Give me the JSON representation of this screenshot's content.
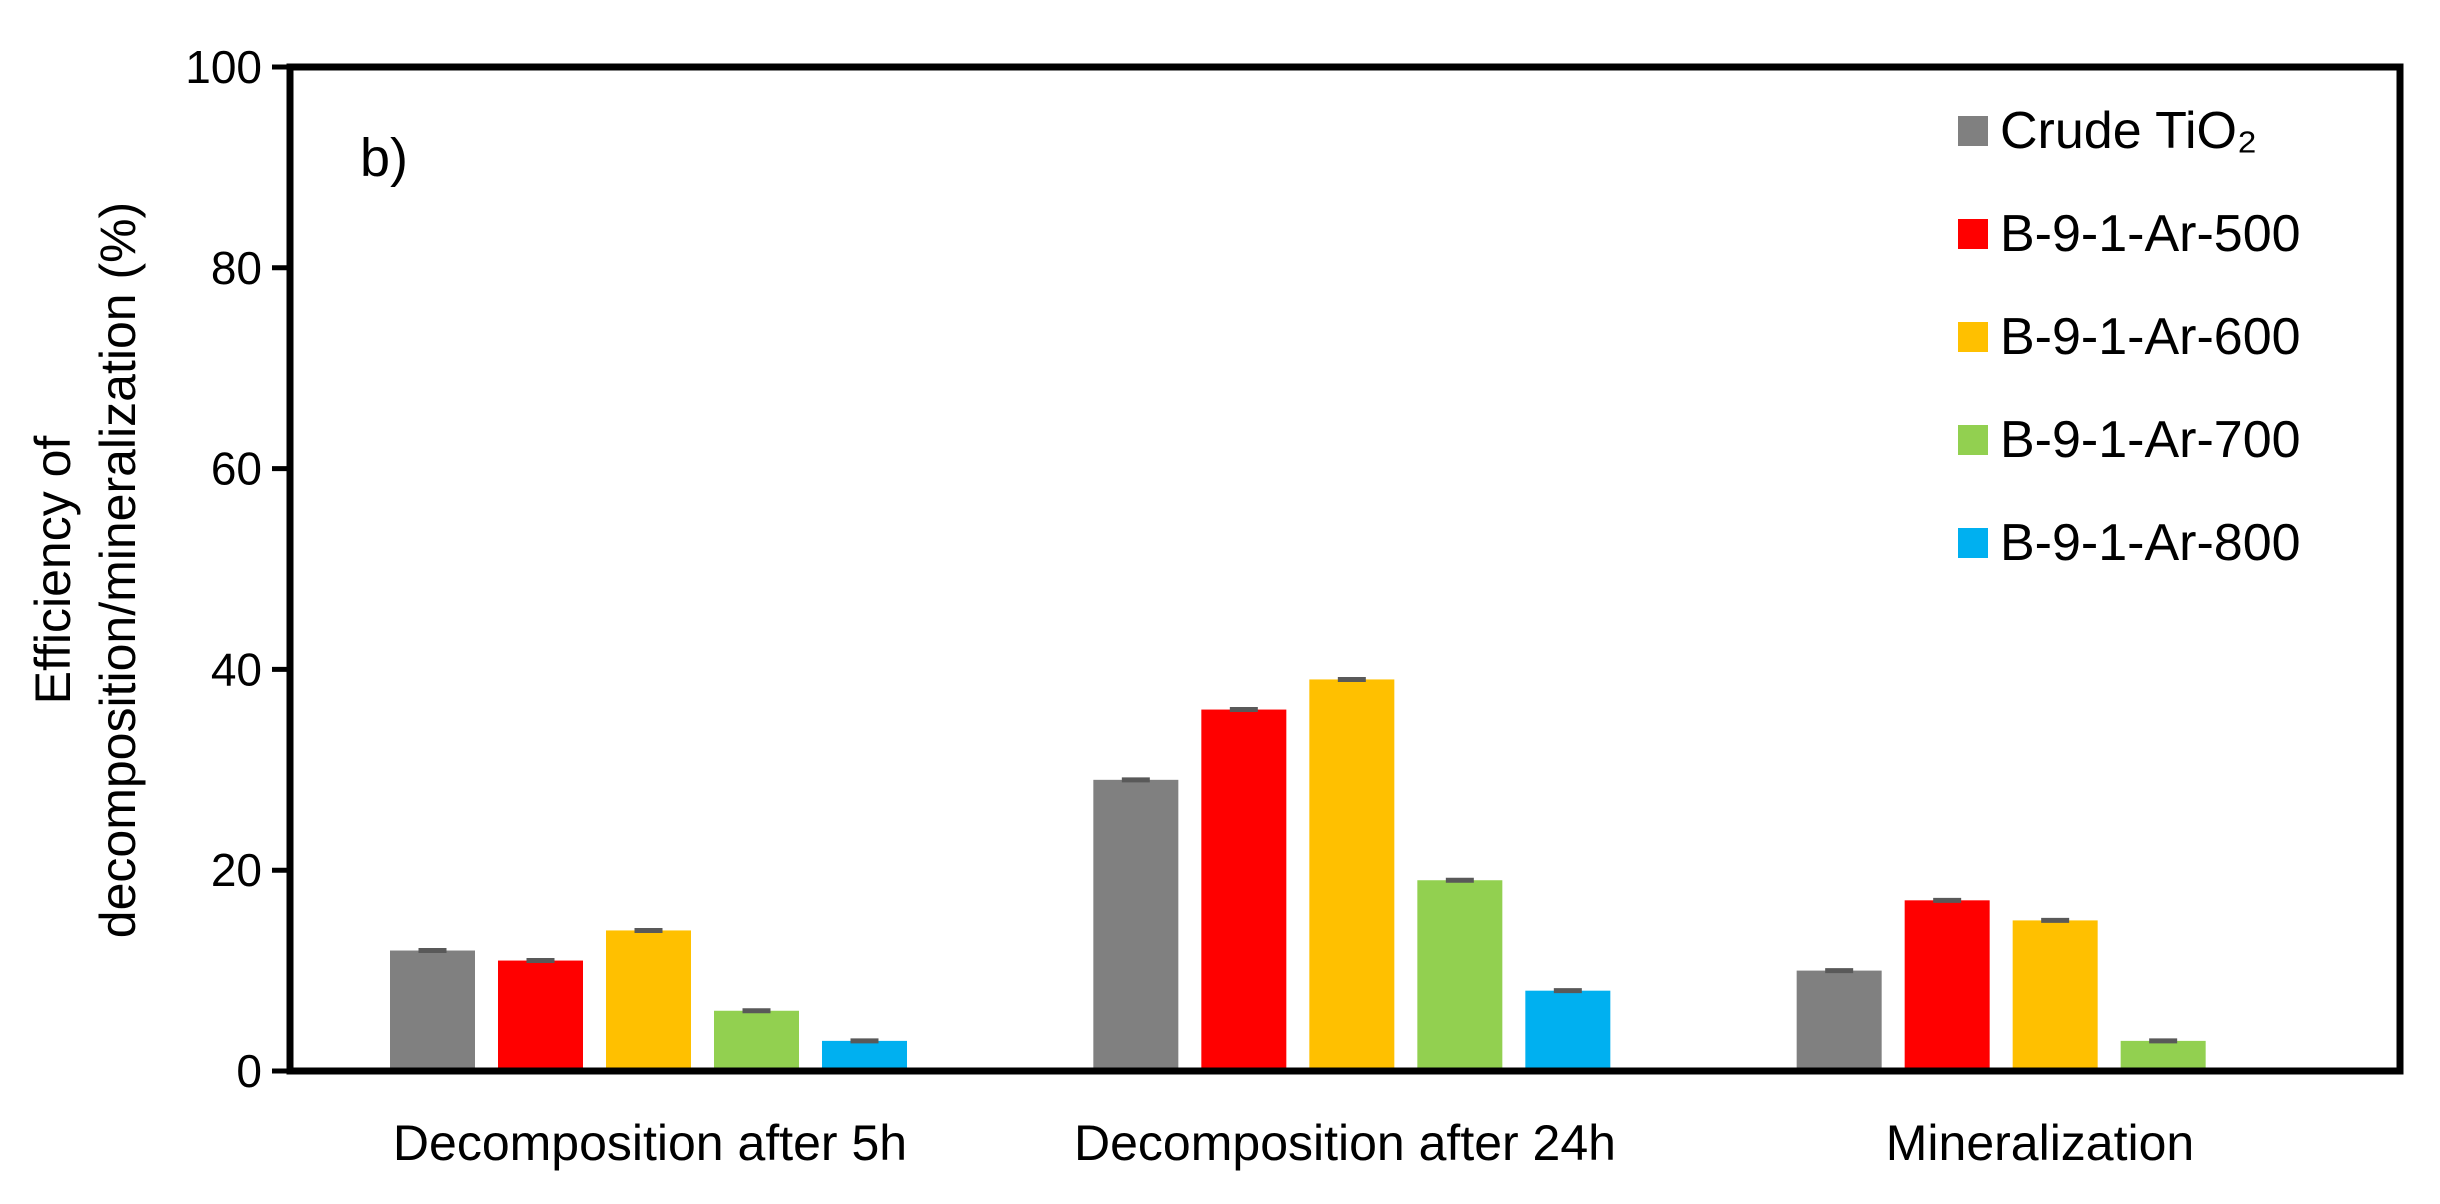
{
  "chart_data": {
    "type": "bar",
    "panel_label": "b)",
    "ylabel_lines": [
      "Efficiency of",
      "decomposition/mineralization  (%)"
    ],
    "xlabel": "",
    "ylim": [
      0,
      100
    ],
    "yticks": [
      "0",
      "20",
      "40",
      "60",
      "80",
      "100"
    ],
    "categories": [
      "Decomposition after 5h",
      "Decomposition after 24h",
      "Mineralization"
    ],
    "series": [
      {
        "name": "Crude TiO₂",
        "color": "#808080",
        "values": [
          12,
          29,
          10
        ]
      },
      {
        "name": "B-9-1-Ar-500",
        "color": "#ff0000",
        "values": [
          11,
          36,
          17
        ]
      },
      {
        "name": "B-9-1-Ar-600",
        "color": "#ffc000",
        "values": [
          14,
          39,
          15
        ]
      },
      {
        "name": "B-9-1-Ar-700",
        "color": "#92d050",
        "values": [
          6,
          19,
          3
        ]
      },
      {
        "name": "B-9-1-Ar-800",
        "color": "#00b0f0",
        "values": [
          3,
          8,
          0
        ]
      }
    ],
    "error_bars": true,
    "legend_position": "top-right",
    "grid": false
  }
}
